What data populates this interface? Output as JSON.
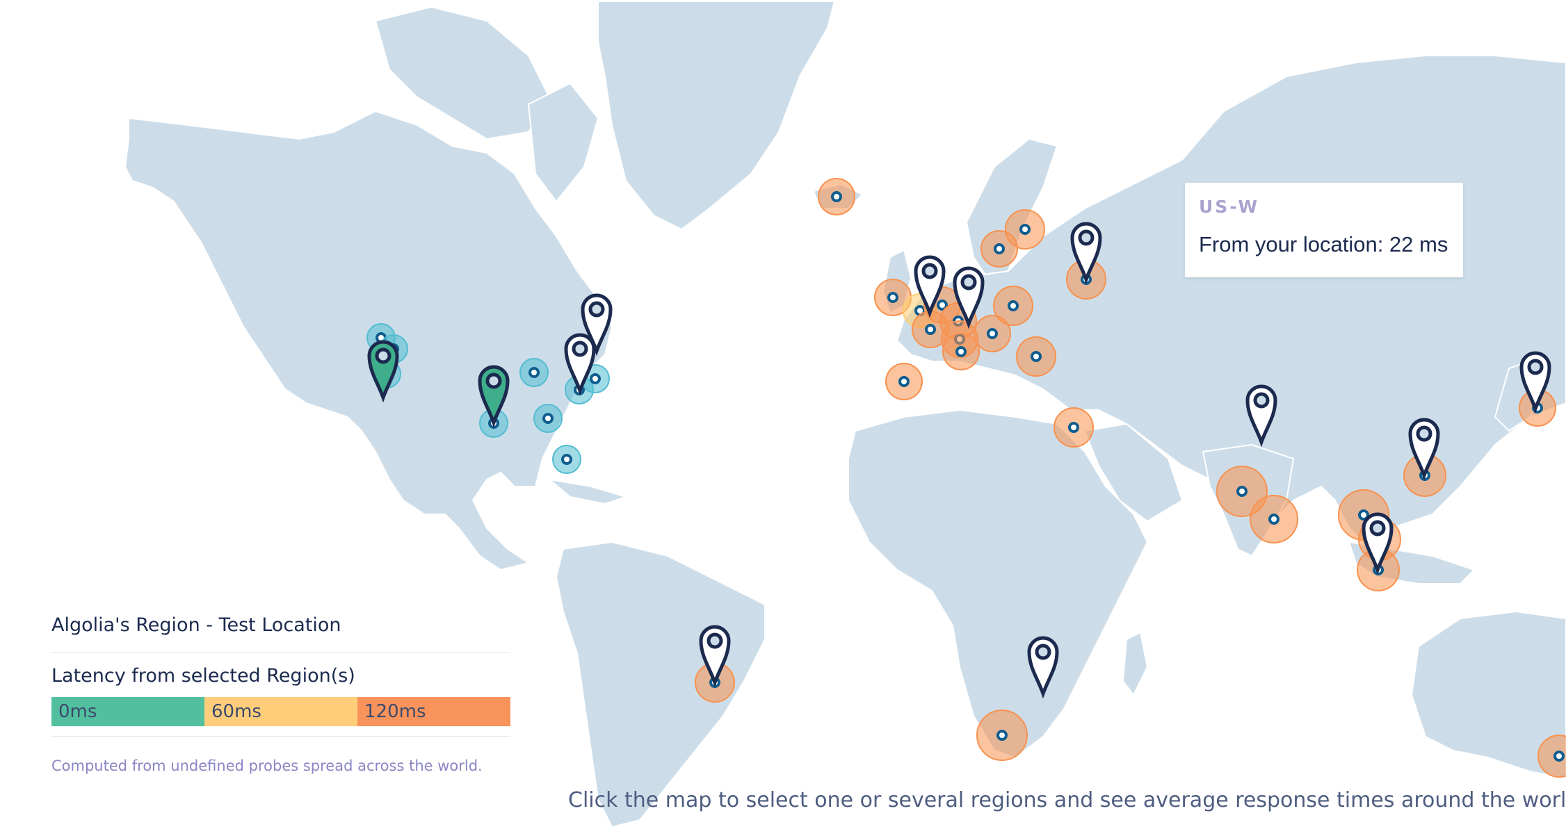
{
  "map": {
    "land_color": "#ccdde9",
    "ocean_color": "#ffffff",
    "probe_colors": {
      "fast": "#52bdd1",
      "slow": "#f8924f",
      "medium": "#fecd6f"
    },
    "markers": [
      {
        "id": "us-west",
        "icon": "map-pin-icon",
        "selected": true
      },
      {
        "id": "us-central",
        "icon": "map-pin-icon",
        "selected": true
      },
      {
        "id": "us-east-1",
        "icon": "map-pin-icon",
        "selected": false
      },
      {
        "id": "us-east-2",
        "icon": "map-pin-icon",
        "selected": false
      },
      {
        "id": "brazil",
        "icon": "map-pin-icon",
        "selected": false
      },
      {
        "id": "uk",
        "icon": "map-pin-icon",
        "selected": false
      },
      {
        "id": "germany",
        "icon": "map-pin-icon",
        "selected": false
      },
      {
        "id": "russia",
        "icon": "map-pin-icon",
        "selected": false
      },
      {
        "id": "india",
        "icon": "map-pin-icon",
        "selected": false
      },
      {
        "id": "hong-kong",
        "icon": "map-pin-icon",
        "selected": false
      },
      {
        "id": "singapore",
        "icon": "map-pin-icon",
        "selected": false
      },
      {
        "id": "japan",
        "icon": "map-pin-icon",
        "selected": false
      },
      {
        "id": "south-africa",
        "icon": "map-pin-icon",
        "selected": false
      }
    ]
  },
  "tooltip": {
    "region": "US-W",
    "text": "From your location: 22 ms"
  },
  "legend": {
    "title": "Algolia's Region - Test Location",
    "latency_label": "Latency from selected Region(s)",
    "segments": [
      {
        "label": "0ms",
        "color": "#52bf9f"
      },
      {
        "label": "60ms",
        "color": "#fecd7a"
      },
      {
        "label": "120ms",
        "color": "#f8935b"
      }
    ],
    "footnote": "Computed from undefined probes spread across the world."
  },
  "instruction": "Click the map to select one or several regions and see average response times around the world."
}
